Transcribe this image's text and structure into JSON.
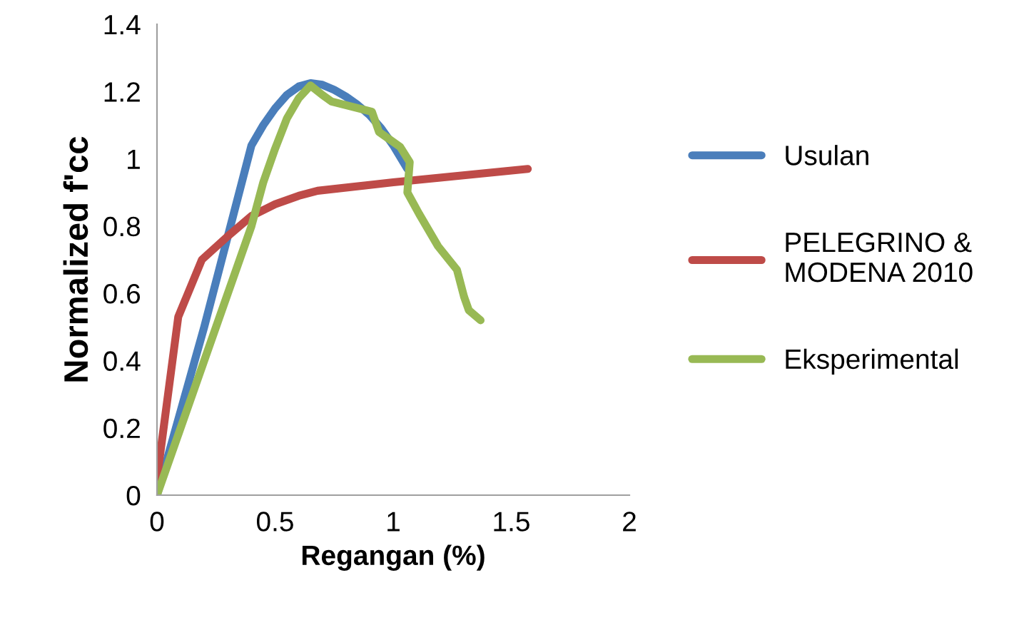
{
  "chart_data": {
    "type": "line",
    "xlabel": "Regangan (%)",
    "ylabel": "Normalized f'cc",
    "xlim": [
      0,
      2
    ],
    "xticks": [
      0,
      0.5,
      1,
      1.5,
      2
    ],
    "ylim": [
      0,
      1.4
    ],
    "yticks": [
      0,
      0.2,
      0.4,
      0.6,
      0.8,
      1,
      1.2,
      1.4
    ],
    "grid": false,
    "legend": "right",
    "marker": "none",
    "line_style": "solid",
    "series": [
      {
        "name": "Usulan",
        "color": "#4a7ebb",
        "x": [
          0,
          0.1,
          0.2,
          0.3,
          0.4,
          0.45,
          0.5,
          0.55,
          0.6,
          0.65,
          0.7,
          0.75,
          0.8,
          0.85,
          0.9,
          0.95,
          1.0,
          1.06
        ],
        "values": [
          0,
          0.25,
          0.5,
          0.77,
          1.04,
          1.1,
          1.15,
          1.19,
          1.215,
          1.225,
          1.22,
          1.205,
          1.185,
          1.16,
          1.13,
          1.09,
          1.04,
          0.97
        ]
      },
      {
        "name": "PELEGRINO &\nMODENA 2010",
        "color": "#be4b48",
        "x": [
          0,
          0.09,
          0.19,
          0.3,
          0.4,
          0.5,
          0.6,
          0.68,
          1.0,
          1.57
        ],
        "values": [
          0.05,
          0.53,
          0.7,
          0.77,
          0.83,
          0.865,
          0.89,
          0.905,
          0.93,
          0.97
        ]
      },
      {
        "name": "Eksperimental",
        "color": "#98b954",
        "x": [
          0,
          0.2,
          0.4,
          0.45,
          0.5,
          0.55,
          0.6,
          0.65,
          0.7,
          0.74,
          0.91,
          0.92,
          0.94,
          1.03,
          1.07,
          1.06,
          1.11,
          1.19,
          1.27,
          1.3,
          1.32,
          1.37
        ],
        "values": [
          0,
          0.4,
          0.8,
          0.93,
          1.03,
          1.12,
          1.18,
          1.218,
          1.19,
          1.17,
          1.14,
          1.12,
          1.08,
          1.035,
          0.99,
          0.9,
          0.836,
          0.74,
          0.67,
          0.59,
          0.55,
          0.52
        ]
      }
    ]
  }
}
